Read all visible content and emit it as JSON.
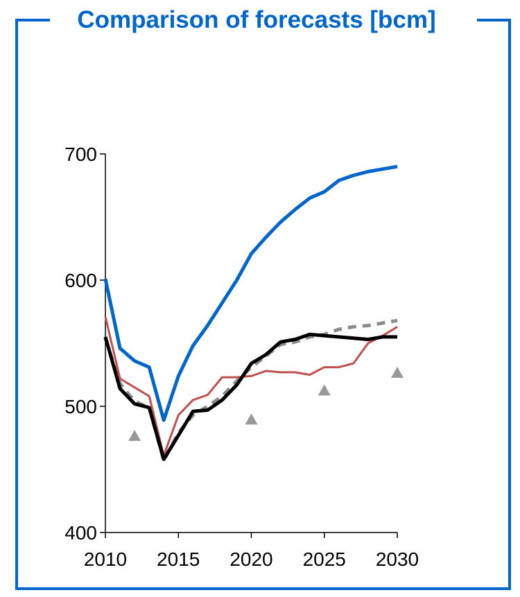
{
  "chart_data": {
    "type": "line",
    "title": "Comparison of forecasts [bcm]",
    "xlabel": "",
    "ylabel": "",
    "xlim": [
      2010,
      2030
    ],
    "ylim": [
      400,
      700
    ],
    "x_ticks": [
      "2010",
      "2015",
      "2020",
      "2025",
      "2030"
    ],
    "y_ticks": [
      "400",
      "500",
      "600",
      "700"
    ],
    "grid": false,
    "legend": "none",
    "series": [
      {
        "style": "line",
        "color": "#0066cc",
        "points": [
          [
            2010,
            601
          ],
          [
            2011,
            546
          ],
          [
            2012,
            536
          ],
          [
            2013,
            531
          ],
          [
            2014,
            489
          ],
          [
            2015,
            524
          ],
          [
            2016,
            548
          ],
          [
            2017,
            564
          ],
          [
            2018,
            582
          ],
          [
            2019,
            600
          ],
          [
            2020,
            621
          ],
          [
            2021,
            634
          ],
          [
            2022,
            646
          ],
          [
            2023,
            656
          ],
          [
            2024,
            665
          ],
          [
            2025,
            670
          ],
          [
            2026,
            679
          ],
          [
            2027,
            683
          ],
          [
            2028,
            686
          ],
          [
            2029,
            688
          ],
          [
            2030,
            690
          ]
        ]
      },
      {
        "style": "dashed",
        "color": "#8c8c8c",
        "points": [
          [
            2010,
            554
          ],
          [
            2011,
            518
          ],
          [
            2012,
            504
          ],
          [
            2013,
            499
          ],
          [
            2014,
            457
          ],
          [
            2015,
            479
          ],
          [
            2016,
            493
          ],
          [
            2017,
            500
          ],
          [
            2018,
            508
          ],
          [
            2019,
            520
          ],
          [
            2020,
            531
          ],
          [
            2021,
            540
          ],
          [
            2022,
            549
          ],
          [
            2023,
            551
          ],
          [
            2024,
            555
          ],
          [
            2025,
            557
          ],
          [
            2026,
            561
          ],
          [
            2027,
            563
          ],
          [
            2028,
            564
          ],
          [
            2029,
            566
          ],
          [
            2030,
            568
          ]
        ]
      },
      {
        "style": "line",
        "color": "#c0504d",
        "points": [
          [
            2010,
            571
          ],
          [
            2011,
            522
          ],
          [
            2012,
            515
          ],
          [
            2013,
            508
          ],
          [
            2014,
            461
          ],
          [
            2015,
            493
          ],
          [
            2016,
            505
          ],
          [
            2017,
            509
          ],
          [
            2018,
            523
          ],
          [
            2019,
            523
          ],
          [
            2020,
            524
          ],
          [
            2021,
            528
          ],
          [
            2022,
            527
          ],
          [
            2023,
            527
          ],
          [
            2024,
            525
          ],
          [
            2025,
            531
          ],
          [
            2026,
            531
          ],
          [
            2027,
            534
          ],
          [
            2028,
            550
          ],
          [
            2029,
            556
          ],
          [
            2030,
            563
          ]
        ]
      },
      {
        "style": "line",
        "color": "#000000",
        "points": [
          [
            2010,
            555
          ],
          [
            2011,
            514
          ],
          [
            2012,
            502
          ],
          [
            2013,
            499
          ],
          [
            2014,
            458
          ],
          [
            2015,
            477
          ],
          [
            2016,
            496
          ],
          [
            2017,
            497
          ],
          [
            2018,
            505
          ],
          [
            2019,
            517
          ],
          [
            2020,
            534
          ],
          [
            2021,
            541
          ],
          [
            2022,
            551
          ],
          [
            2023,
            553
          ],
          [
            2024,
            557
          ],
          [
            2025,
            556
          ],
          [
            2026,
            555
          ],
          [
            2027,
            554
          ],
          [
            2028,
            553
          ],
          [
            2029,
            555
          ],
          [
            2030,
            555
          ]
        ]
      },
      {
        "style": "markers",
        "marker": "triangle",
        "color": "#999999",
        "points": [
          [
            2012,
            477
          ],
          [
            2020,
            490
          ],
          [
            2025,
            513
          ],
          [
            2030,
            527
          ]
        ]
      }
    ]
  }
}
